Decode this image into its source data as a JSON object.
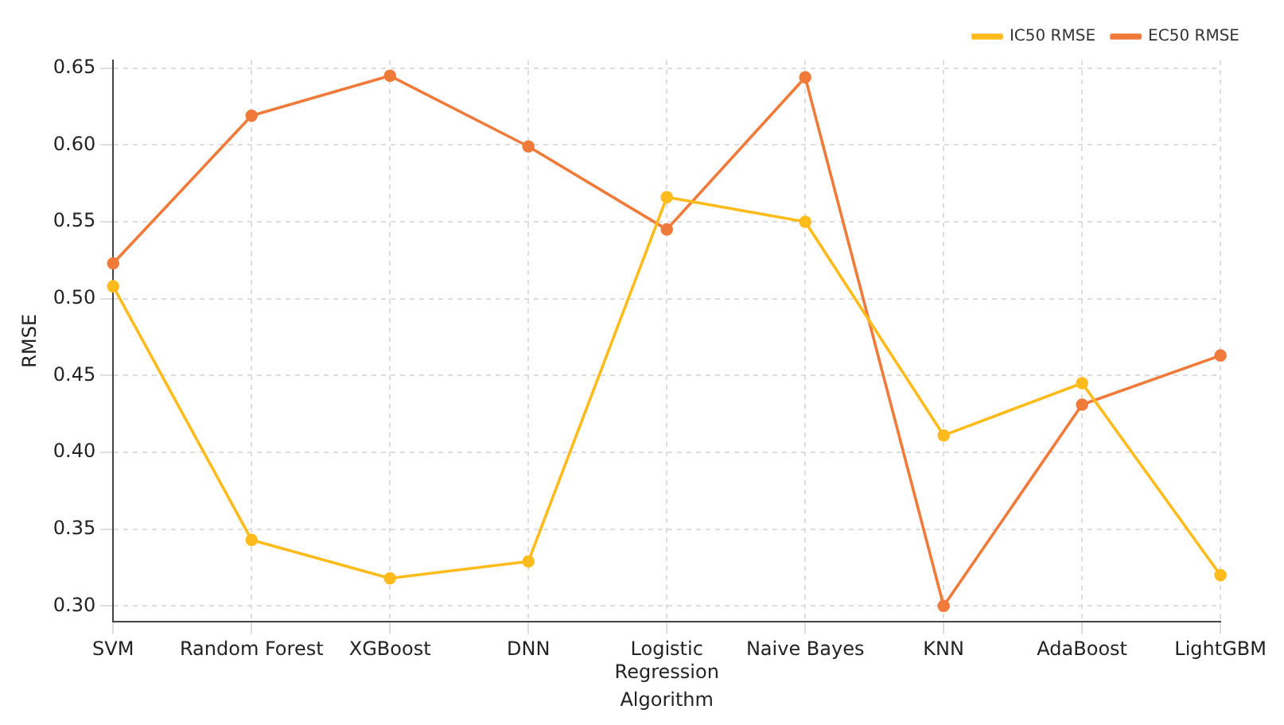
{
  "chart_data": {
    "type": "line",
    "xlabel": "Algorithm",
    "ylabel": "RMSE",
    "categories": [
      "SVM",
      "Random Forest",
      "XGBoost",
      "DNN",
      "Logistic Regression",
      "Naive Bayes",
      "KNN",
      "AdaBoost",
      "LightGBM"
    ],
    "series": [
      {
        "name": "IC50 RMSE",
        "color": "#ffbb1c",
        "values": [
          0.508,
          0.343,
          0.318,
          0.329,
          0.566,
          0.55,
          0.411,
          0.445,
          0.32
        ]
      },
      {
        "name": "EC50 RMSE",
        "color": "#f07a3a",
        "values": [
          0.523,
          0.619,
          0.645,
          0.599,
          0.545,
          0.644,
          0.3,
          0.431,
          0.463
        ]
      }
    ],
    "ylim": [
      0.29,
      0.655
    ],
    "yticks": [
      {
        "value": 0.3,
        "label": "0.30"
      },
      0.35,
      {
        "value": 0.4,
        "label": "0.40"
      },
      0.45,
      {
        "value": 0.5,
        "label": "0.50"
      },
      0.55,
      {
        "value": 0.6,
        "label": "0.60"
      },
      0.65
    ],
    "grid": true,
    "legend": "top right",
    "marker": "circle",
    "line_style": "solid"
  }
}
